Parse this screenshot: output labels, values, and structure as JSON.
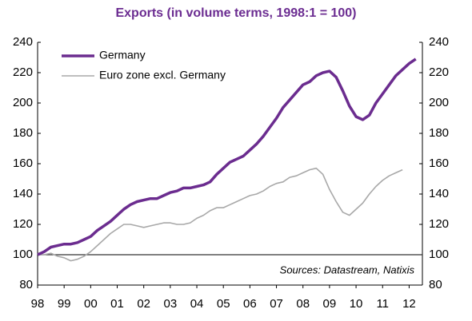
{
  "chart_data": {
    "type": "line",
    "title": "Exports (in volume terms, 1998:1 = 100)",
    "annotation": "Sources: Datastream, Natixis",
    "xlim": [
      1998,
      2012.5
    ],
    "xticks": [
      {
        "value": 1998,
        "label": "98"
      },
      {
        "value": 1999,
        "label": "99"
      },
      {
        "value": 2000,
        "label": "00"
      },
      {
        "value": 2001,
        "label": "01"
      },
      {
        "value": 2002,
        "label": "02"
      },
      {
        "value": 2003,
        "label": "03"
      },
      {
        "value": 2004,
        "label": "04"
      },
      {
        "value": 2005,
        "label": "05"
      },
      {
        "value": 2006,
        "label": "06"
      },
      {
        "value": 2007,
        "label": "07"
      },
      {
        "value": 2008,
        "label": "08"
      },
      {
        "value": 2009,
        "label": "09"
      },
      {
        "value": 2010,
        "label": "10"
      },
      {
        "value": 2011,
        "label": "11"
      },
      {
        "value": 2012,
        "label": "12"
      }
    ],
    "ylim": [
      80,
      240
    ],
    "yticks": [
      80,
      100,
      120,
      140,
      160,
      180,
      200,
      220,
      240
    ],
    "y2lim": [
      80,
      240
    ],
    "y2ticks": [
      80,
      100,
      120,
      140,
      160,
      180,
      200,
      220,
      240
    ],
    "reference_line": 100,
    "legend": "top-left",
    "series": [
      {
        "name": "Germany",
        "color": "#6b2c8f",
        "x": [
          1998,
          1998.25,
          1998.5,
          1998.75,
          1999,
          1999.25,
          1999.5,
          1999.75,
          2000,
          2000.25,
          2000.5,
          2000.75,
          2001,
          2001.25,
          2001.5,
          2001.75,
          2002,
          2002.25,
          2002.5,
          2002.75,
          2003,
          2003.25,
          2003.5,
          2003.75,
          2004,
          2004.25,
          2004.5,
          2004.75,
          2005,
          2005.25,
          2005.5,
          2005.75,
          2006,
          2006.25,
          2006.5,
          2006.75,
          2007,
          2007.25,
          2007.5,
          2007.75,
          2008,
          2008.25,
          2008.5,
          2008.75,
          2009,
          2009.25,
          2009.5,
          2009.75,
          2010,
          2010.25,
          2010.5,
          2010.75,
          2011,
          2011.25,
          2011.5,
          2011.75,
          2012,
          2012.25
        ],
        "values": [
          100,
          102,
          105,
          106,
          107,
          107,
          108,
          110,
          112,
          116,
          119,
          122,
          126,
          130,
          133,
          135,
          136,
          137,
          137,
          139,
          141,
          142,
          144,
          144,
          145,
          146,
          148,
          153,
          157,
          161,
          163,
          165,
          169,
          173,
          178,
          184,
          190,
          197,
          202,
          207,
          212,
          214,
          218,
          220,
          221,
          217,
          208,
          198,
          191,
          189,
          192,
          200,
          206,
          212,
          218,
          222,
          226,
          229
        ]
      },
      {
        "name": "Euro zone excl. Germany",
        "color": "#a8a8a8",
        "x": [
          1998,
          1998.25,
          1998.5,
          1998.75,
          1999,
          1999.25,
          1999.5,
          1999.75,
          2000,
          2000.25,
          2000.5,
          2000.75,
          2001,
          2001.25,
          2001.5,
          2001.75,
          2002,
          2002.25,
          2002.5,
          2002.75,
          2003,
          2003.25,
          2003.5,
          2003.75,
          2004,
          2004.25,
          2004.5,
          2004.75,
          2005,
          2005.25,
          2005.5,
          2005.75,
          2006,
          2006.25,
          2006.5,
          2006.75,
          2007,
          2007.25,
          2007.5,
          2007.75,
          2008,
          2008.25,
          2008.5,
          2008.75,
          2009,
          2009.25,
          2009.5,
          2009.75,
          2010,
          2010.25,
          2010.5,
          2010.75,
          2011,
          2011.25,
          2011.5,
          2011.75
        ],
        "values": [
          100,
          100,
          101,
          99,
          98,
          96,
          97,
          99,
          102,
          106,
          110,
          114,
          117,
          120,
          120,
          119,
          118,
          119,
          120,
          121,
          121,
          120,
          120,
          121,
          124,
          126,
          129,
          131,
          131,
          133,
          135,
          137,
          139,
          140,
          142,
          145,
          147,
          148,
          151,
          152,
          154,
          156,
          157,
          153,
          143,
          135,
          128,
          126,
          130,
          134,
          140,
          145,
          149,
          152,
          154,
          156
        ]
      }
    ]
  }
}
